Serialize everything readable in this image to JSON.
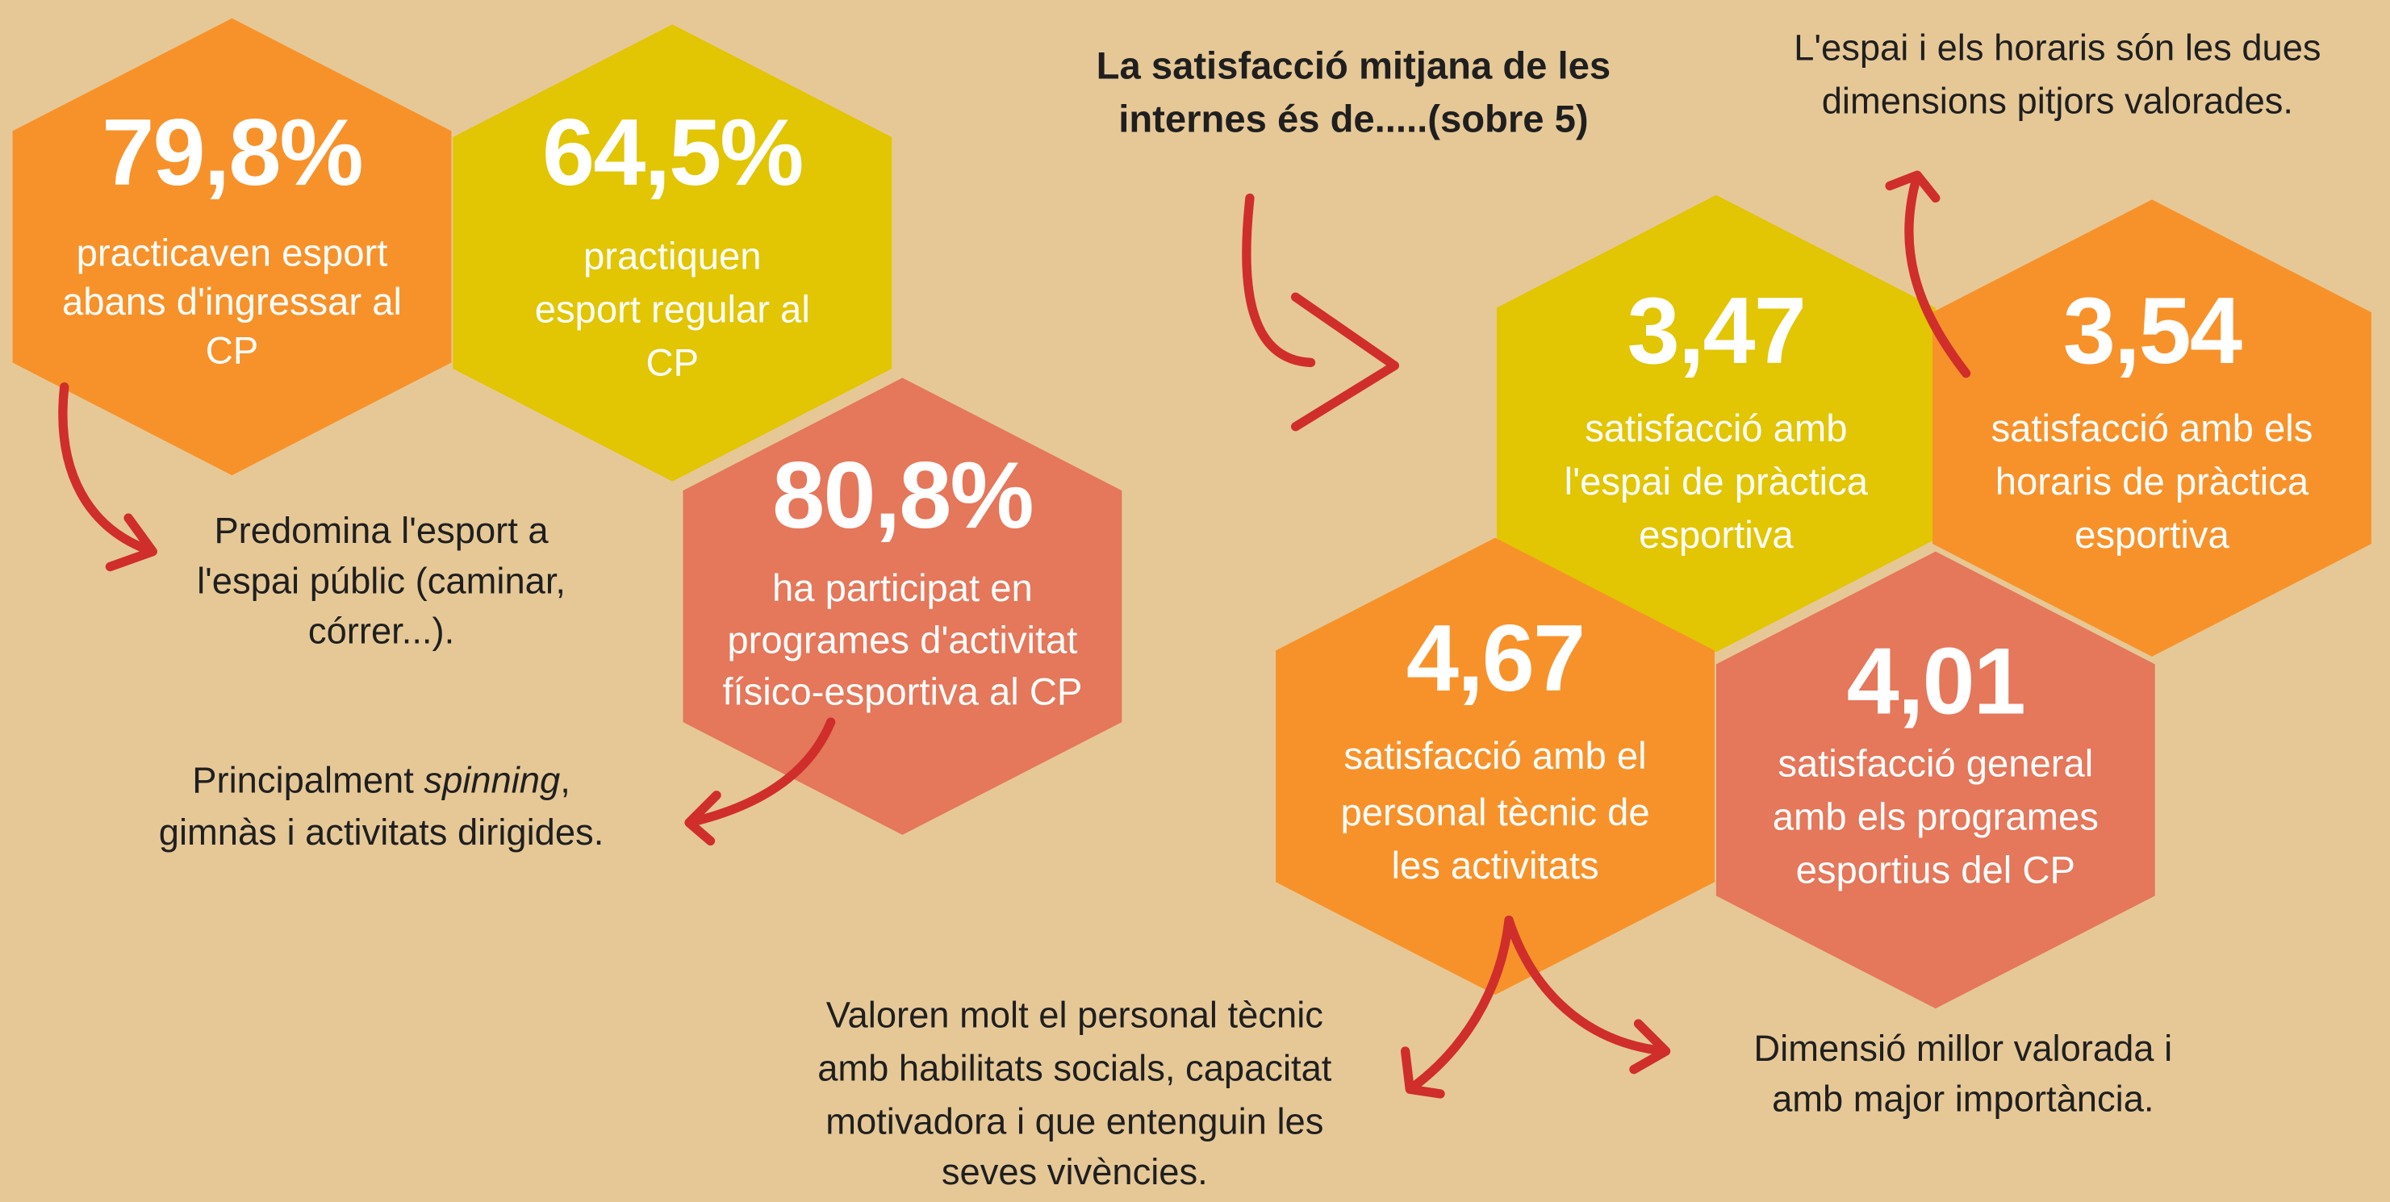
{
  "title": [
    "La satisfacció mitjana de les",
    "internes és de.....(sobre 5)"
  ],
  "hexagons": [
    {
      "value": "79,8%",
      "lines": [
        "practicaven esport",
        "abans d'ingressar al",
        "CP"
      ]
    },
    {
      "value": "64,5%",
      "lines": [
        "practiquen",
        "esport regular al",
        "CP"
      ]
    },
    {
      "value": "80,8%",
      "lines": [
        "ha participat en",
        "programes d'activitat",
        "físico-esportiva al CP"
      ]
    },
    {
      "value": "3,47",
      "lines": [
        "satisfacció amb",
        "l'espai de pràctica",
        "esportiva"
      ]
    },
    {
      "value": "3,54",
      "lines": [
        "satisfacció amb els",
        "horaris de pràctica",
        "esportiva"
      ]
    },
    {
      "value": "4,67",
      "lines": [
        "satisfacció amb el",
        "personal tècnic de",
        "les activitats"
      ]
    },
    {
      "value": "4,01",
      "lines": [
        "satisfacció general",
        "amb els programes",
        "esportius del CP"
      ]
    }
  ],
  "notes": [
    {
      "lines": [
        [
          {
            "text": "L'espai i els horaris són les dues"
          }
        ],
        [
          {
            "text": "dimensions pitjors valorades."
          }
        ]
      ]
    },
    {
      "lines": [
        [
          {
            "text": "Predomina l'esport a"
          }
        ],
        [
          {
            "text": "l'espai públic (caminar,"
          }
        ],
        [
          {
            "text": "córrer...)."
          }
        ]
      ]
    },
    {
      "lines": [
        [
          {
            "text": "Principalment "
          },
          {
            "text": "spinning",
            "style": "italic"
          },
          {
            "text": ","
          }
        ],
        [
          {
            "text": "gimnàs i activitats dirigides."
          }
        ]
      ]
    },
    {
      "lines": [
        [
          {
            "text": "Valoren molt el personal tècnic"
          }
        ],
        [
          {
            "text": "amb habilitats socials, capacitat"
          }
        ],
        [
          {
            "text": "motivadora i que entenguin les"
          }
        ],
        [
          {
            "text": "seves vivències."
          }
        ]
      ]
    },
    {
      "lines": [
        [
          {
            "text": "Dimensió millor valorada i"
          }
        ],
        [
          {
            "text": "amb major importància."
          }
        ]
      ]
    }
  ]
}
